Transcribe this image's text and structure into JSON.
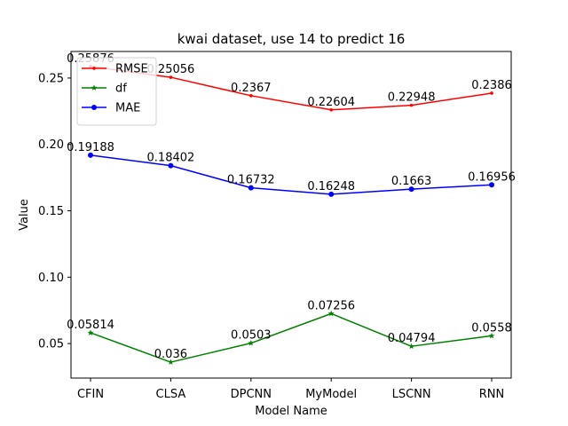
{
  "chart_data": {
    "type": "line",
    "title": "kwai dataset, use 14 to predict 16",
    "xlabel": "Model Name",
    "ylabel": "Value",
    "categories": [
      "CFIN",
      "CLSA",
      "DPCNN",
      "MyModel",
      "LSCNN",
      "RNN"
    ],
    "ylim": [
      0.024,
      0.27
    ],
    "yticks": [
      "0.05",
      "0.10",
      "0.15",
      "0.20",
      "0.25"
    ],
    "grid": false,
    "legend_position": "top-left",
    "series": [
      {
        "name": "RMSE",
        "color": "#ff0000",
        "marker": "dot",
        "values": [
          0.25876,
          0.25056,
          0.2367,
          0.22604,
          0.22948,
          0.2386
        ],
        "labels": [
          "0.25876",
          "0.25056",
          "0.2367",
          "0.22604",
          "0.22948",
          "0.2386"
        ]
      },
      {
        "name": "df",
        "color": "#008000",
        "marker": "star",
        "values": [
          0.05814,
          0.036,
          0.0503,
          0.07256,
          0.04794,
          0.0558
        ],
        "labels": [
          "0.05814",
          "0.036",
          "0.0503",
          "0.07256",
          "0.04794",
          "0.0558"
        ]
      },
      {
        "name": "MAE",
        "color": "#0000ff",
        "marker": "circle",
        "values": [
          0.19188,
          0.18402,
          0.16732,
          0.16248,
          0.1663,
          0.16956
        ],
        "labels": [
          "0.19188",
          "0.18402",
          "0.16732",
          "0.16248",
          "0.1663",
          "0.16956"
        ]
      }
    ]
  }
}
